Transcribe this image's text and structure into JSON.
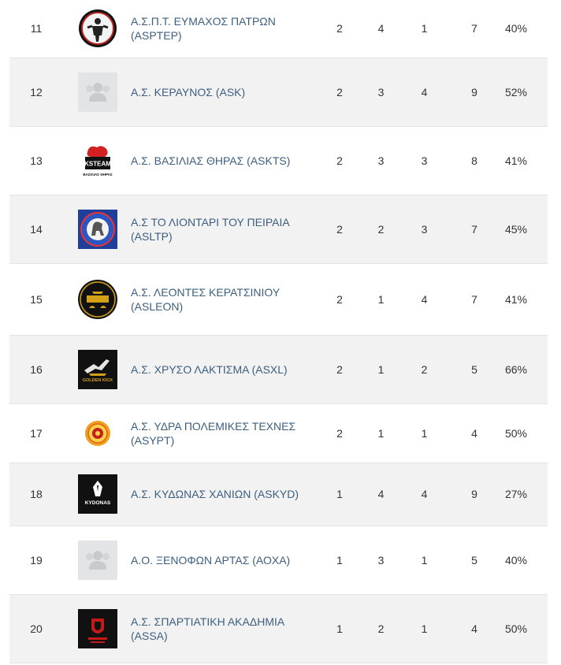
{
  "rows": [
    {
      "rank": "11",
      "name": "Α.Σ.Π.Τ. ΕΥΜΑΧΟΣ ΠΑΤΡΩΝ (ASPTEP)",
      "logo": "asptep-logo",
      "c1": "2",
      "c2": "4",
      "c3": "1",
      "c4": "7",
      "pct": "40%"
    },
    {
      "rank": "12",
      "name": "Α.Σ. ΚΕΡΑΥΝΟΣ (ASK)",
      "logo": "placeholder-users",
      "c1": "2",
      "c2": "3",
      "c3": "4",
      "c4": "9",
      "pct": "52%"
    },
    {
      "rank": "13",
      "name": "Α.Σ. ΒΑΣΙΛΙΑΣ ΘΗΡΑΣ (ASKTS)",
      "logo": "ksteam-logo",
      "c1": "2",
      "c2": "3",
      "c3": "3",
      "c4": "8",
      "pct": "41%"
    },
    {
      "rank": "14",
      "name": "Α.Σ ΤΟ ΛΙΟΝΤΑΡΙ ΤΟΥ ΠΕΙΡΑΙΑ (ASLTP)",
      "logo": "asltp-logo",
      "c1": "2",
      "c2": "2",
      "c3": "3",
      "c4": "7",
      "pct": "45%"
    },
    {
      "rank": "15",
      "name": "Α.Σ. ΛΕΟΝΤΕΣ ΚΕΡΑΤΣΙΝΙΟΥ (ASLEON)",
      "logo": "asleon-logo",
      "c1": "2",
      "c2": "1",
      "c3": "4",
      "c4": "7",
      "pct": "41%"
    },
    {
      "rank": "16",
      "name": "Α.Σ. ΧΡΥΣΟ ΛΑΚΤΙΣΜΑ (ASXL)",
      "logo": "golden-kick-logo",
      "c1": "2",
      "c2": "1",
      "c3": "2",
      "c4": "5",
      "pct": "66%"
    },
    {
      "rank": "17",
      "name": "Α.Σ. ΥΔΡΑ ΠΟΛΕΜΙΚΕΣ ΤΕΧΝΕΣ (ASYPT)",
      "logo": "asypt-logo",
      "c1": "2",
      "c2": "1",
      "c3": "1",
      "c4": "4",
      "pct": "50%"
    },
    {
      "rank": "18",
      "name": "Α.Σ. ΚΥΔΩΝΑΣ ΧΑΝΙΩΝ (ASKYD)",
      "logo": "kydonas-logo",
      "c1": "1",
      "c2": "4",
      "c3": "4",
      "c4": "9",
      "pct": "27%"
    },
    {
      "rank": "19",
      "name": "Α.Ο. ΞΕΝΟΦΩΝ ΑΡΤΑΣ (ΑΟΧΑ)",
      "logo": "placeholder-users",
      "c1": "1",
      "c2": "3",
      "c3": "1",
      "c4": "5",
      "pct": "40%"
    },
    {
      "rank": "20",
      "name": "Α.Σ. ΣΠΑΡΤΙΑΤΙΚΗ ΑΚΑΔΗΜΙΑ (ASSA)",
      "logo": "assa-logo",
      "c1": "1",
      "c2": "2",
      "c3": "1",
      "c4": "4",
      "pct": "50%"
    }
  ],
  "logo_text": {
    "ksteam": "KSTEAM",
    "ksteam_sub": "ΒΑΣΙΛΙΑΣ ΘΗΡΑΣ",
    "golden_kick": "GOLDEN KICK",
    "kydonas": "KYDONAS"
  },
  "colors": {
    "name_link": "#3d5f7f",
    "alt_row": "#f2f2f2",
    "divider": "#e4e4e4"
  }
}
